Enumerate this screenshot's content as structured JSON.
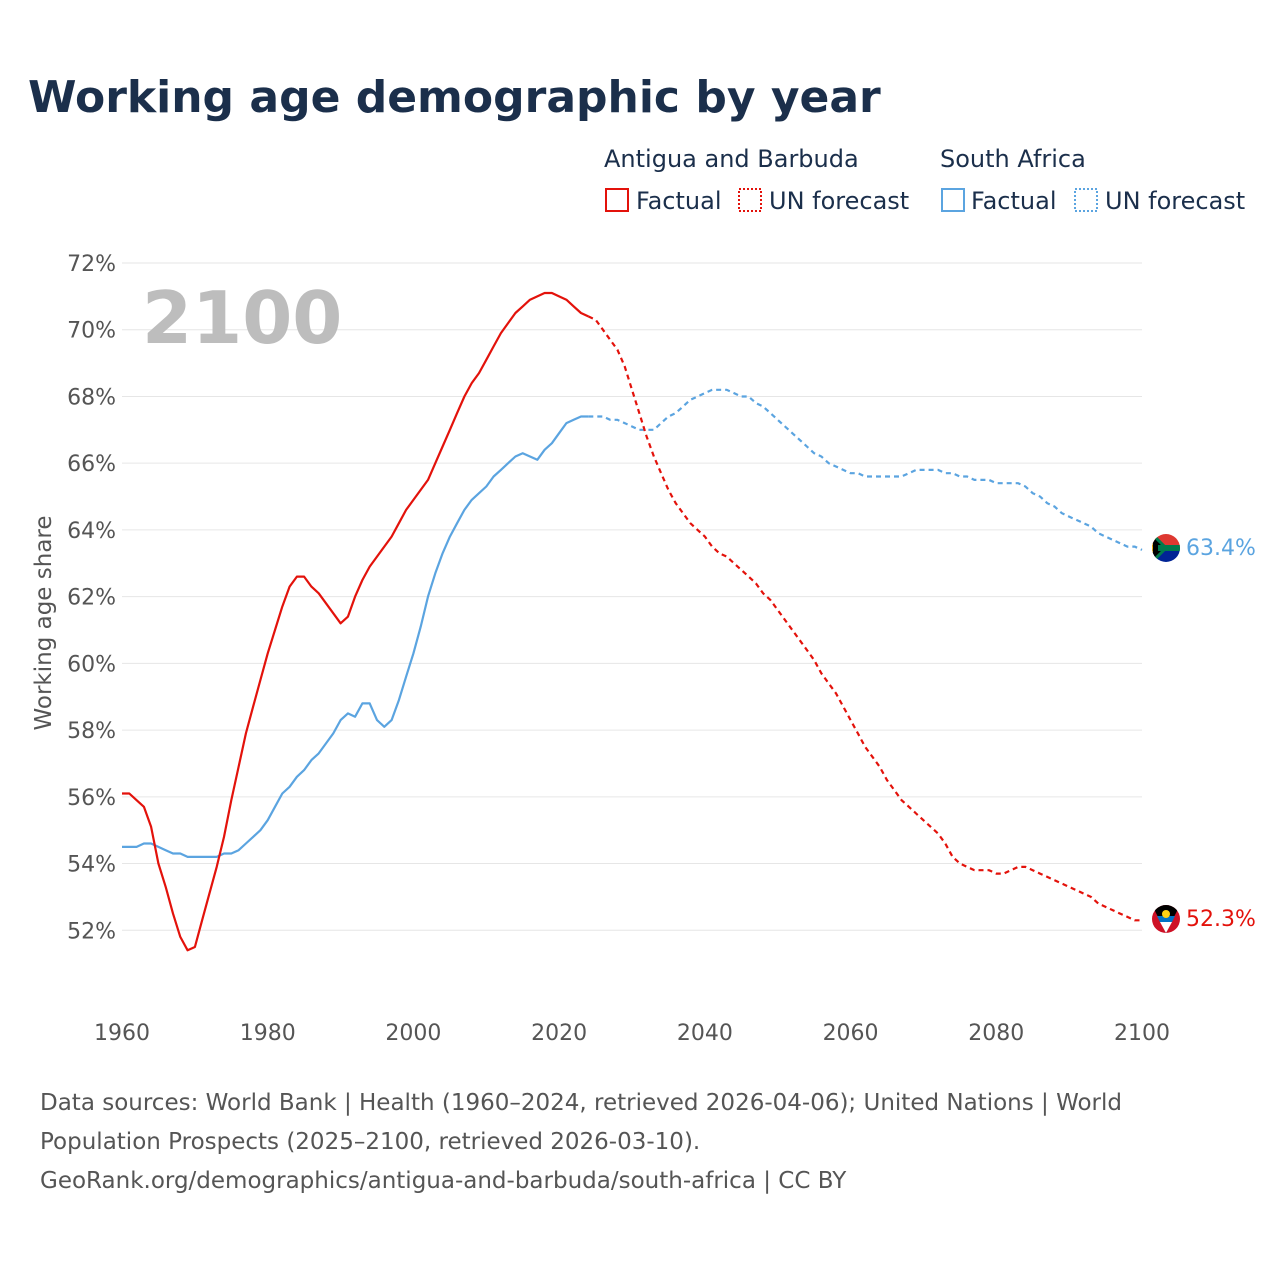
{
  "title": "Working age demographic by year",
  "year_watermark": "2100",
  "legend": {
    "groups": [
      {
        "name": "Antigua and Barbuda",
        "color": "#e3120b",
        "factual_label": "Factual",
        "forecast_label": "UN forecast"
      },
      {
        "name": "South Africa",
        "color": "#5ba4e0",
        "factual_label": "Factual",
        "forecast_label": "UN forecast"
      }
    ]
  },
  "footer": {
    "line1": "Data sources: World Bank | Health (1960–2024, retrieved 2026-04-06); United Nations | World",
    "line2": "Population Prospects (2025–2100, retrieved 2026-03-10).",
    "line3": "GeoRank.org/demographics/antigua-and-barbuda/south-africa | CC BY"
  },
  "end_labels": {
    "south_africa": "63.4%",
    "antigua": "52.3%"
  },
  "chart_data": {
    "type": "line",
    "title": "Working age demographic by year",
    "xlabel": "",
    "ylabel": "Working age share",
    "xlim": [
      1960,
      2100
    ],
    "ylim": [
      50,
      72
    ],
    "x_ticks": [
      "1960",
      "1980",
      "2000",
      "2020",
      "2040",
      "2060",
      "2080",
      "2100"
    ],
    "y_ticks": [
      "52%",
      "54%",
      "56%",
      "58%",
      "60%",
      "62%",
      "64%",
      "66%",
      "68%",
      "70%",
      "72%"
    ],
    "series": [
      {
        "name": "Antigua and Barbuda",
        "color": "#e3120b",
        "factual": [
          [
            1960,
            56.1
          ],
          [
            1961,
            56.1
          ],
          [
            1962,
            55.9
          ],
          [
            1963,
            55.7
          ],
          [
            1964,
            55.1
          ],
          [
            1965,
            54.0
          ],
          [
            1966,
            53.3
          ],
          [
            1967,
            52.5
          ],
          [
            1968,
            51.8
          ],
          [
            1969,
            51.4
          ],
          [
            1970,
            51.5
          ],
          [
            1971,
            52.3
          ],
          [
            1972,
            53.1
          ],
          [
            1973,
            53.9
          ],
          [
            1974,
            54.8
          ],
          [
            1975,
            55.9
          ],
          [
            1976,
            56.9
          ],
          [
            1977,
            57.9
          ],
          [
            1978,
            58.7
          ],
          [
            1979,
            59.5
          ],
          [
            1980,
            60.3
          ],
          [
            1981,
            61.0
          ],
          [
            1982,
            61.7
          ],
          [
            1983,
            62.3
          ],
          [
            1984,
            62.6
          ],
          [
            1985,
            62.6
          ],
          [
            1986,
            62.3
          ],
          [
            1987,
            62.1
          ],
          [
            1988,
            61.8
          ],
          [
            1989,
            61.5
          ],
          [
            1990,
            61.2
          ],
          [
            1991,
            61.4
          ],
          [
            1992,
            62.0
          ],
          [
            1993,
            62.5
          ],
          [
            1994,
            62.9
          ],
          [
            1995,
            63.2
          ],
          [
            1996,
            63.5
          ],
          [
            1997,
            63.8
          ],
          [
            1998,
            64.2
          ],
          [
            1999,
            64.6
          ],
          [
            2000,
            64.9
          ],
          [
            2001,
            65.2
          ],
          [
            2002,
            65.5
          ],
          [
            2003,
            66.0
          ],
          [
            2004,
            66.5
          ],
          [
            2005,
            67.0
          ],
          [
            2006,
            67.5
          ],
          [
            2007,
            68.0
          ],
          [
            2008,
            68.4
          ],
          [
            2009,
            68.7
          ],
          [
            2010,
            69.1
          ],
          [
            2011,
            69.5
          ],
          [
            2012,
            69.9
          ],
          [
            2013,
            70.2
          ],
          [
            2014,
            70.5
          ],
          [
            2015,
            70.7
          ],
          [
            2016,
            70.9
          ],
          [
            2017,
            71.0
          ],
          [
            2018,
            71.1
          ],
          [
            2019,
            71.1
          ],
          [
            2020,
            71.0
          ],
          [
            2021,
            70.9
          ],
          [
            2022,
            70.7
          ],
          [
            2023,
            70.5
          ],
          [
            2024,
            70.4
          ]
        ],
        "forecast": [
          [
            2024,
            70.4
          ],
          [
            2025,
            70.3
          ],
          [
            2026,
            70.0
          ],
          [
            2027,
            69.7
          ],
          [
            2028,
            69.4
          ],
          [
            2029,
            68.9
          ],
          [
            2030,
            68.2
          ],
          [
            2031,
            67.5
          ],
          [
            2032,
            66.8
          ],
          [
            2033,
            66.2
          ],
          [
            2034,
            65.7
          ],
          [
            2035,
            65.2
          ],
          [
            2036,
            64.8
          ],
          [
            2037,
            64.5
          ],
          [
            2038,
            64.2
          ],
          [
            2039,
            64.0
          ],
          [
            2040,
            63.8
          ],
          [
            2041,
            63.5
          ],
          [
            2042,
            63.3
          ],
          [
            2043,
            63.2
          ],
          [
            2044,
            63.0
          ],
          [
            2045,
            62.8
          ],
          [
            2046,
            62.6
          ],
          [
            2047,
            62.4
          ],
          [
            2048,
            62.1
          ],
          [
            2049,
            61.9
          ],
          [
            2050,
            61.6
          ],
          [
            2051,
            61.3
          ],
          [
            2052,
            61.0
          ],
          [
            2053,
            60.7
          ],
          [
            2054,
            60.4
          ],
          [
            2055,
            60.1
          ],
          [
            2056,
            59.7
          ],
          [
            2057,
            59.4
          ],
          [
            2058,
            59.1
          ],
          [
            2059,
            58.7
          ],
          [
            2060,
            58.3
          ],
          [
            2061,
            57.9
          ],
          [
            2062,
            57.5
          ],
          [
            2063,
            57.2
          ],
          [
            2064,
            56.9
          ],
          [
            2065,
            56.5
          ],
          [
            2066,
            56.2
          ],
          [
            2067,
            55.9
          ],
          [
            2068,
            55.7
          ],
          [
            2069,
            55.5
          ],
          [
            2070,
            55.3
          ],
          [
            2071,
            55.1
          ],
          [
            2072,
            54.9
          ],
          [
            2073,
            54.6
          ],
          [
            2074,
            54.2
          ],
          [
            2075,
            54.0
          ],
          [
            2076,
            53.9
          ],
          [
            2077,
            53.8
          ],
          [
            2078,
            53.8
          ],
          [
            2079,
            53.8
          ],
          [
            2080,
            53.7
          ],
          [
            2081,
            53.7
          ],
          [
            2082,
            53.8
          ],
          [
            2083,
            53.9
          ],
          [
            2084,
            53.9
          ],
          [
            2085,
            53.8
          ],
          [
            2086,
            53.7
          ],
          [
            2087,
            53.6
          ],
          [
            2088,
            53.5
          ],
          [
            2089,
            53.4
          ],
          [
            2090,
            53.3
          ],
          [
            2091,
            53.2
          ],
          [
            2092,
            53.1
          ],
          [
            2093,
            53.0
          ],
          [
            2094,
            52.8
          ],
          [
            2095,
            52.7
          ],
          [
            2096,
            52.6
          ],
          [
            2097,
            52.5
          ],
          [
            2098,
            52.4
          ],
          [
            2099,
            52.3
          ],
          [
            2100,
            52.3
          ]
        ],
        "end_value": "52.3%"
      },
      {
        "name": "South Africa",
        "color": "#5ba4e0",
        "factual": [
          [
            1960,
            54.5
          ],
          [
            1961,
            54.5
          ],
          [
            1962,
            54.5
          ],
          [
            1963,
            54.6
          ],
          [
            1964,
            54.6
          ],
          [
            1965,
            54.5
          ],
          [
            1966,
            54.4
          ],
          [
            1967,
            54.3
          ],
          [
            1968,
            54.3
          ],
          [
            1969,
            54.2
          ],
          [
            1970,
            54.2
          ],
          [
            1971,
            54.2
          ],
          [
            1972,
            54.2
          ],
          [
            1973,
            54.2
          ],
          [
            1974,
            54.3
          ],
          [
            1975,
            54.3
          ],
          [
            1976,
            54.4
          ],
          [
            1977,
            54.6
          ],
          [
            1978,
            54.8
          ],
          [
            1979,
            55.0
          ],
          [
            1980,
            55.3
          ],
          [
            1981,
            55.7
          ],
          [
            1982,
            56.1
          ],
          [
            1983,
            56.3
          ],
          [
            1984,
            56.6
          ],
          [
            1985,
            56.8
          ],
          [
            1986,
            57.1
          ],
          [
            1987,
            57.3
          ],
          [
            1988,
            57.6
          ],
          [
            1989,
            57.9
          ],
          [
            1990,
            58.3
          ],
          [
            1991,
            58.5
          ],
          [
            1992,
            58.4
          ],
          [
            1993,
            58.8
          ],
          [
            1994,
            58.8
          ],
          [
            1995,
            58.3
          ],
          [
            1996,
            58.1
          ],
          [
            1997,
            58.3
          ],
          [
            1998,
            58.9
          ],
          [
            1999,
            59.6
          ],
          [
            2000,
            60.3
          ],
          [
            2001,
            61.1
          ],
          [
            2002,
            62.0
          ],
          [
            2003,
            62.7
          ],
          [
            2004,
            63.3
          ],
          [
            2005,
            63.8
          ],
          [
            2006,
            64.2
          ],
          [
            2007,
            64.6
          ],
          [
            2008,
            64.9
          ],
          [
            2009,
            65.1
          ],
          [
            2010,
            65.3
          ],
          [
            2011,
            65.6
          ],
          [
            2012,
            65.8
          ],
          [
            2013,
            66.0
          ],
          [
            2014,
            66.2
          ],
          [
            2015,
            66.3
          ],
          [
            2016,
            66.2
          ],
          [
            2017,
            66.1
          ],
          [
            2018,
            66.4
          ],
          [
            2019,
            66.6
          ],
          [
            2020,
            66.9
          ],
          [
            2021,
            67.2
          ],
          [
            2022,
            67.3
          ],
          [
            2023,
            67.4
          ],
          [
            2024,
            67.4
          ]
        ],
        "forecast": [
          [
            2024,
            67.4
          ],
          [
            2025,
            67.4
          ],
          [
            2026,
            67.4
          ],
          [
            2027,
            67.3
          ],
          [
            2028,
            67.3
          ],
          [
            2029,
            67.2
          ],
          [
            2030,
            67.1
          ],
          [
            2031,
            67.0
          ],
          [
            2032,
            67.0
          ],
          [
            2033,
            67.0
          ],
          [
            2034,
            67.2
          ],
          [
            2035,
            67.4
          ],
          [
            2036,
            67.5
          ],
          [
            2037,
            67.7
          ],
          [
            2038,
            67.9
          ],
          [
            2039,
            68.0
          ],
          [
            2040,
            68.1
          ],
          [
            2041,
            68.2
          ],
          [
            2042,
            68.2
          ],
          [
            2043,
            68.2
          ],
          [
            2044,
            68.1
          ],
          [
            2045,
            68.0
          ],
          [
            2046,
            68.0
          ],
          [
            2047,
            67.8
          ],
          [
            2048,
            67.7
          ],
          [
            2049,
            67.5
          ],
          [
            2050,
            67.3
          ],
          [
            2051,
            67.1
          ],
          [
            2052,
            66.9
          ],
          [
            2053,
            66.7
          ],
          [
            2054,
            66.5
          ],
          [
            2055,
            66.3
          ],
          [
            2056,
            66.2
          ],
          [
            2057,
            66.0
          ],
          [
            2058,
            65.9
          ],
          [
            2059,
            65.8
          ],
          [
            2060,
            65.7
          ],
          [
            2061,
            65.7
          ],
          [
            2062,
            65.6
          ],
          [
            2063,
            65.6
          ],
          [
            2064,
            65.6
          ],
          [
            2065,
            65.6
          ],
          [
            2066,
            65.6
          ],
          [
            2067,
            65.6
          ],
          [
            2068,
            65.7
          ],
          [
            2069,
            65.8
          ],
          [
            2070,
            65.8
          ],
          [
            2071,
            65.8
          ],
          [
            2072,
            65.8
          ],
          [
            2073,
            65.7
          ],
          [
            2074,
            65.7
          ],
          [
            2075,
            65.6
          ],
          [
            2076,
            65.6
          ],
          [
            2077,
            65.5
          ],
          [
            2078,
            65.5
          ],
          [
            2079,
            65.5
          ],
          [
            2080,
            65.4
          ],
          [
            2081,
            65.4
          ],
          [
            2082,
            65.4
          ],
          [
            2083,
            65.4
          ],
          [
            2084,
            65.3
          ],
          [
            2085,
            65.1
          ],
          [
            2086,
            65.0
          ],
          [
            2087,
            64.8
          ],
          [
            2088,
            64.7
          ],
          [
            2089,
            64.5
          ],
          [
            2090,
            64.4
          ],
          [
            2091,
            64.3
          ],
          [
            2092,
            64.2
          ],
          [
            2093,
            64.1
          ],
          [
            2094,
            63.9
          ],
          [
            2095,
            63.8
          ],
          [
            2096,
            63.7
          ],
          [
            2097,
            63.6
          ],
          [
            2098,
            63.5
          ],
          [
            2099,
            63.5
          ],
          [
            2100,
            63.4
          ]
        ],
        "end_value": "63.4%"
      }
    ]
  }
}
